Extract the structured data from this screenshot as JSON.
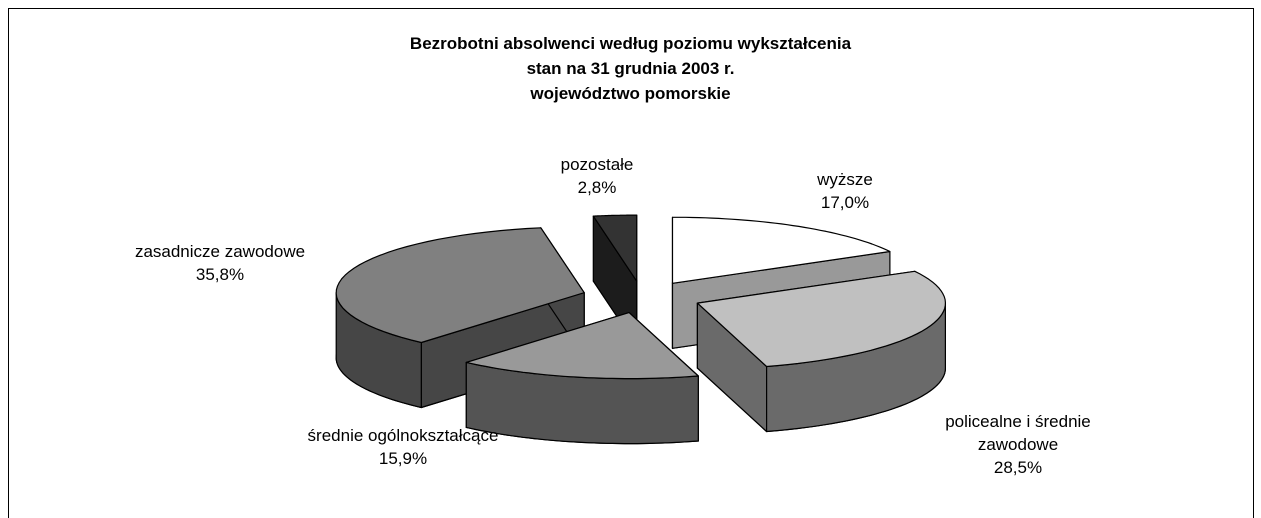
{
  "chart_data": {
    "type": "pie3d",
    "title": [
      "Bezrobotni absolwenci według poziomu wykształcenia",
      "stan na 31 grudnia 2003 r.",
      "województwo pomorskie"
    ],
    "categories": [
      "wyższe",
      "policealne i średnie zawodowe",
      "średnie ogólnokształcące",
      "zasadnicze zawodowe",
      "pozostałe"
    ],
    "values": [
      17.0,
      28.5,
      15.9,
      35.8,
      2.8
    ],
    "value_labels": [
      "17,0%",
      "28,5%",
      "15,9%",
      "35,8%",
      "2,8%"
    ],
    "colors": [
      "#ffffff",
      "#c0c0c0",
      "#999999",
      "#808080",
      "#333333"
    ]
  }
}
